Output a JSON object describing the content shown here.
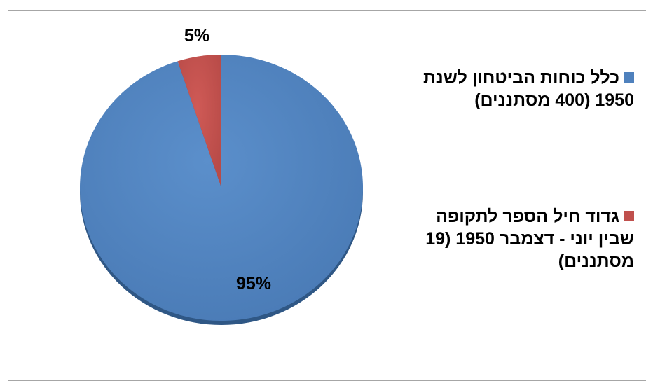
{
  "chart_data": {
    "type": "pie",
    "categories": [
      "כלל כוחות הביטחון לשנת 1950 (400 מסתננים)",
      "גדוד חיל הספר לתקופה שבין יוני - דצמבר 1950 (19 מסתננים)"
    ],
    "values": [
      95,
      5
    ],
    "data_labels": [
      "95%",
      "5%"
    ],
    "colors": [
      "#4F81BD",
      "#C0504D"
    ],
    "legend_position": "right"
  }
}
